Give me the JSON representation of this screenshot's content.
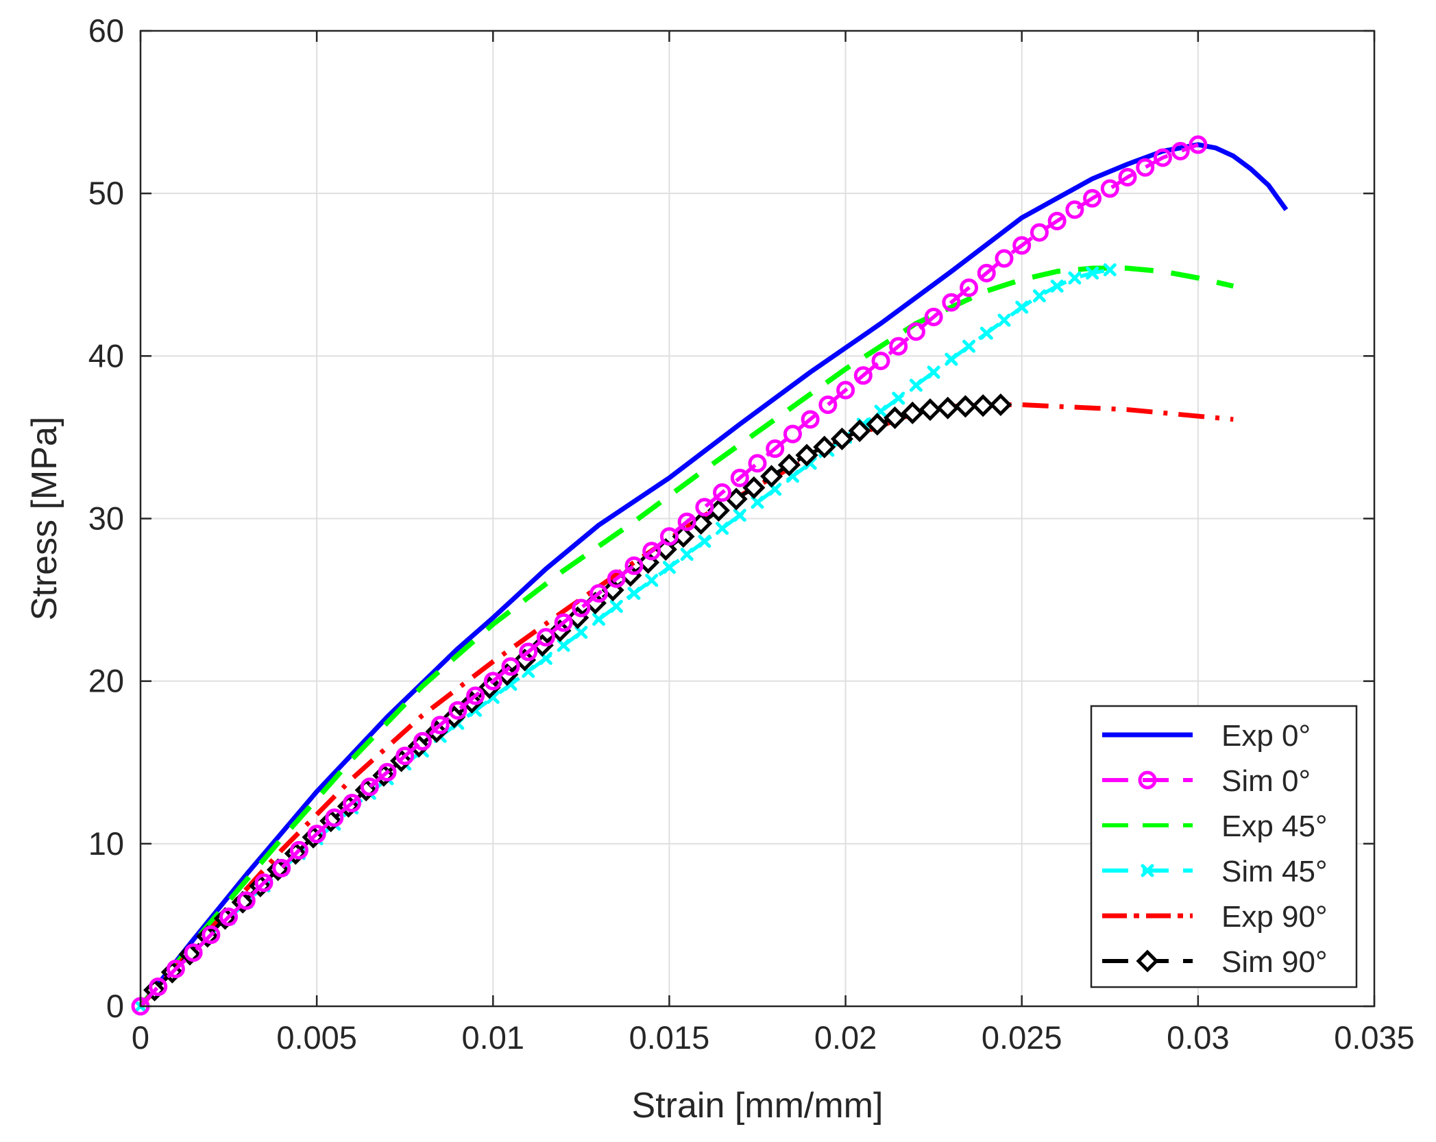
{
  "chart_data": {
    "type": "line",
    "title": "",
    "xlabel": "Strain [mm/mm]",
    "ylabel": "Stress [MPa]",
    "xlim": [
      0,
      0.035
    ],
    "ylim": [
      0,
      60
    ],
    "grid": true,
    "legend_position": "bottom-right",
    "x_ticks": [
      0,
      0.005,
      0.01,
      0.015,
      0.02,
      0.025,
      0.03,
      0.035
    ],
    "x_tick_labels": [
      "0",
      "0.005",
      "0.01",
      "0.015",
      "0.02",
      "0.025",
      "0.03",
      "0.035"
    ],
    "y_ticks": [
      0,
      10,
      20,
      30,
      40,
      50,
      60
    ],
    "y_tick_labels": [
      "0",
      "10",
      "20",
      "30",
      "40",
      "50",
      "60"
    ],
    "series": [
      {
        "name": "Exp 0°",
        "color": "#0000ff",
        "line_style": "solid",
        "marker": "none",
        "x": [
          0,
          0.0015,
          0.003,
          0.005,
          0.007,
          0.009,
          0.01,
          0.0115,
          0.013,
          0.015,
          0.017,
          0.019,
          0.021,
          0.023,
          0.025,
          0.027,
          0.028,
          0.029,
          0.0295,
          0.03,
          0.0305,
          0.031,
          0.0315,
          0.032,
          0.0325
        ],
        "y": [
          0,
          4.1,
          8.1,
          13.2,
          17.8,
          22.0,
          23.9,
          26.9,
          29.6,
          32.5,
          35.8,
          39.0,
          42.0,
          45.2,
          48.5,
          50.9,
          51.8,
          52.6,
          52.8,
          53.0,
          52.8,
          52.3,
          51.5,
          50.5,
          49.0
        ]
      },
      {
        "name": "Sim 0°",
        "color": "#ff00ff",
        "line_style": "dashed",
        "marker": "circle",
        "x": [
          0,
          0.0005,
          0.001,
          0.0015,
          0.002,
          0.0025,
          0.003,
          0.0035,
          0.004,
          0.0045,
          0.005,
          0.0055,
          0.006,
          0.0065,
          0.007,
          0.0075,
          0.008,
          0.0085,
          0.009,
          0.0095,
          0.01,
          0.0105,
          0.011,
          0.0115,
          0.012,
          0.0125,
          0.013,
          0.0135,
          0.014,
          0.0145,
          0.015,
          0.0155,
          0.016,
          0.0165,
          0.017,
          0.0175,
          0.018,
          0.0185,
          0.019,
          0.0195,
          0.02,
          0.0205,
          0.021,
          0.0215,
          0.022,
          0.0225,
          0.023,
          0.0235,
          0.024,
          0.0245,
          0.025,
          0.0255,
          0.026,
          0.0265,
          0.027,
          0.0275,
          0.028,
          0.0285,
          0.029,
          0.0295,
          0.03
        ],
        "y": [
          0,
          1.2,
          2.3,
          3.3,
          4.4,
          5.5,
          6.5,
          7.6,
          8.5,
          9.6,
          10.6,
          11.6,
          12.5,
          13.5,
          14.4,
          15.4,
          16.3,
          17.3,
          18.2,
          19.1,
          20.0,
          20.9,
          21.8,
          22.7,
          23.6,
          24.5,
          25.4,
          26.3,
          27.1,
          28.0,
          28.9,
          29.8,
          30.7,
          31.6,
          32.5,
          33.4,
          34.3,
          35.2,
          36.1,
          37.0,
          37.9,
          38.8,
          39.7,
          40.6,
          41.5,
          42.4,
          43.3,
          44.2,
          45.1,
          46.0,
          46.8,
          47.6,
          48.3,
          49.0,
          49.7,
          50.3,
          51.0,
          51.6,
          52.2,
          52.6,
          53.0
        ]
      },
      {
        "name": "Exp 45°",
        "color": "#00ff00",
        "line_style": "dashed",
        "marker": "none",
        "x": [
          0,
          0.002,
          0.004,
          0.006,
          0.008,
          0.01,
          0.012,
          0.014,
          0.016,
          0.018,
          0.02,
          0.022,
          0.024,
          0.025,
          0.026,
          0.027,
          0.0275,
          0.028,
          0.029,
          0.03,
          0.031
        ],
        "y": [
          0,
          5.2,
          10.3,
          15.2,
          19.7,
          23.5,
          26.8,
          29.8,
          33.0,
          36.1,
          39.2,
          42.0,
          44.0,
          44.7,
          45.2,
          45.4,
          45.4,
          45.4,
          45.2,
          44.8,
          44.3
        ]
      },
      {
        "name": "Sim 45°",
        "color": "#00ffff",
        "line_style": "dashed",
        "marker": "x",
        "x": [
          0,
          0.0005,
          0.001,
          0.0015,
          0.002,
          0.0025,
          0.003,
          0.0035,
          0.004,
          0.0045,
          0.005,
          0.0055,
          0.006,
          0.0065,
          0.007,
          0.0075,
          0.008,
          0.0085,
          0.009,
          0.0095,
          0.01,
          0.0105,
          0.011,
          0.0115,
          0.012,
          0.0125,
          0.013,
          0.0135,
          0.014,
          0.0145,
          0.015,
          0.0155,
          0.016,
          0.0165,
          0.017,
          0.0175,
          0.018,
          0.0185,
          0.019,
          0.0195,
          0.02,
          0.0205,
          0.021,
          0.0215,
          0.022,
          0.0225,
          0.023,
          0.0235,
          0.024,
          0.0245,
          0.025,
          0.0255,
          0.026,
          0.0265,
          0.027,
          0.0275
        ],
        "y": [
          0,
          1.2,
          2.3,
          3.3,
          4.4,
          5.4,
          6.4,
          7.4,
          8.4,
          9.4,
          10.3,
          11.2,
          12.2,
          13.1,
          14.0,
          14.9,
          15.7,
          16.6,
          17.4,
          18.2,
          19.0,
          19.8,
          20.6,
          21.4,
          22.2,
          23.0,
          23.8,
          24.6,
          25.4,
          26.2,
          27.0,
          27.8,
          28.6,
          29.4,
          30.2,
          31.0,
          31.8,
          32.6,
          33.4,
          34.2,
          35.0,
          35.8,
          36.6,
          37.4,
          38.2,
          39.0,
          39.8,
          40.6,
          41.4,
          42.2,
          43.0,
          43.7,
          44.3,
          44.8,
          45.1,
          45.3
        ]
      },
      {
        "name": "Exp 90°",
        "color": "#ff0000",
        "line_style": "dashdot",
        "marker": "none",
        "x": [
          0,
          0.002,
          0.004,
          0.006,
          0.008,
          0.01,
          0.012,
          0.014,
          0.016,
          0.018,
          0.02,
          0.022,
          0.023,
          0.024,
          0.025,
          0.026,
          0.027,
          0.028,
          0.029,
          0.03,
          0.031
        ],
        "y": [
          0,
          4.8,
          9.6,
          14.0,
          17.9,
          21.2,
          24.3,
          27.3,
          30.2,
          32.6,
          34.9,
          36.5,
          36.9,
          37.0,
          37.0,
          36.9,
          36.8,
          36.7,
          36.5,
          36.3,
          36.1
        ]
      },
      {
        "name": "Sim 90°",
        "color": "#000000",
        "line_style": "dashed",
        "marker": "diamond",
        "x": [
          0.0004,
          0.0009,
          0.0014,
          0.0019,
          0.0024,
          0.0029,
          0.0034,
          0.0039,
          0.0044,
          0.0049,
          0.0054,
          0.0059,
          0.0064,
          0.0069,
          0.0074,
          0.0079,
          0.0084,
          0.0089,
          0.0094,
          0.0099,
          0.0104,
          0.0109,
          0.0114,
          0.0119,
          0.0124,
          0.0129,
          0.0134,
          0.0139,
          0.0144,
          0.0149,
          0.0154,
          0.0159,
          0.0164,
          0.0169,
          0.0174,
          0.0179,
          0.0184,
          0.0189,
          0.0194,
          0.0199,
          0.0204,
          0.0209,
          0.0214,
          0.0219,
          0.0224,
          0.0229,
          0.0234,
          0.0239,
          0.0244
        ],
        "y": [
          1.0,
          2.1,
          3.2,
          4.3,
          5.4,
          6.4,
          7.4,
          8.4,
          9.4,
          10.4,
          11.4,
          12.3,
          13.3,
          14.2,
          15.1,
          16.0,
          16.9,
          17.8,
          18.7,
          19.6,
          20.4,
          21.3,
          22.2,
          23.1,
          23.9,
          24.8,
          25.6,
          26.5,
          27.3,
          28.1,
          28.9,
          29.7,
          30.5,
          31.2,
          31.9,
          32.6,
          33.3,
          33.9,
          34.4,
          34.9,
          35.4,
          35.8,
          36.2,
          36.5,
          36.7,
          36.8,
          36.9,
          36.95,
          37.0
        ]
      }
    ]
  }
}
